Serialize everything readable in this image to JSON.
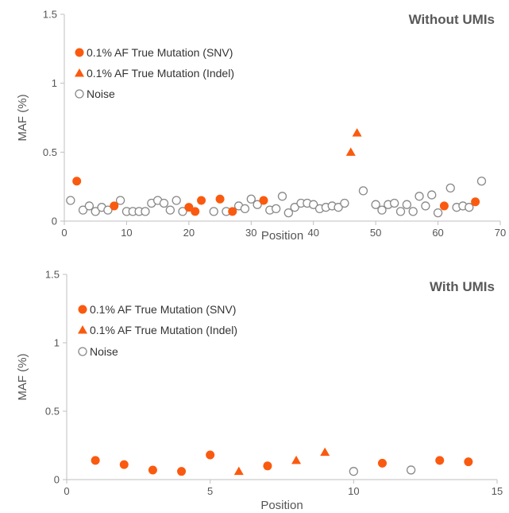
{
  "colors": {
    "mutation": "#FA5A0F",
    "noise_edge": "#888888",
    "axis": "#BFBFBF"
  },
  "chart_data": [
    {
      "type": "scatter",
      "title": "Without UMIs",
      "xlabel": "Position",
      "ylabel": "MAF (%)",
      "xlim": [
        0,
        70
      ],
      "ylim": [
        0,
        1.5
      ],
      "xticks": [
        0,
        10,
        20,
        30,
        40,
        50,
        60,
        70
      ],
      "yticks": [
        0,
        0.5,
        1,
        1.5
      ],
      "ytick_labels": [
        "0",
        "0.5",
        "1",
        "1.5"
      ],
      "legend_position": "top-left",
      "series": [
        {
          "name": "0.1% AF True Mutation (SNV)",
          "marker": "circle-filled",
          "points": [
            [
              2,
              0.29
            ],
            [
              8,
              0.11
            ],
            [
              20,
              0.1
            ],
            [
              21,
              0.07
            ],
            [
              22,
              0.15
            ],
            [
              25,
              0.16
            ],
            [
              27,
              0.07
            ],
            [
              32,
              0.15
            ],
            [
              61,
              0.11
            ],
            [
              66,
              0.14
            ]
          ]
        },
        {
          "name": "0.1% AF True Mutation (Indel)",
          "marker": "triangle-filled",
          "points": [
            [
              46,
              0.5
            ],
            [
              47,
              0.64
            ]
          ]
        },
        {
          "name": "Noise",
          "marker": "circle-open",
          "points": [
            [
              1,
              0.15
            ],
            [
              3,
              0.08
            ],
            [
              4,
              0.11
            ],
            [
              5,
              0.07
            ],
            [
              6,
              0.1
            ],
            [
              7,
              0.08
            ],
            [
              9,
              0.15
            ],
            [
              10,
              0.07
            ],
            [
              11,
              0.07
            ],
            [
              12,
              0.07
            ],
            [
              13,
              0.07
            ],
            [
              14,
              0.13
            ],
            [
              15,
              0.15
            ],
            [
              16,
              0.13
            ],
            [
              17,
              0.08
            ],
            [
              18,
              0.15
            ],
            [
              19,
              0.07
            ],
            [
              24,
              0.07
            ],
            [
              26,
              0.07
            ],
            [
              28,
              0.11
            ],
            [
              29,
              0.09
            ],
            [
              30,
              0.16
            ],
            [
              31,
              0.12
            ],
            [
              33,
              0.08
            ],
            [
              34,
              0.09
            ],
            [
              35,
              0.18
            ],
            [
              36,
              0.06
            ],
            [
              37,
              0.1
            ],
            [
              38,
              0.13
            ],
            [
              39,
              0.13
            ],
            [
              40,
              0.12
            ],
            [
              41,
              0.09
            ],
            [
              42,
              0.1
            ],
            [
              43,
              0.11
            ],
            [
              44,
              0.1
            ],
            [
              45,
              0.13
            ],
            [
              48,
              0.22
            ],
            [
              50,
              0.12
            ],
            [
              51,
              0.08
            ],
            [
              52,
              0.12
            ],
            [
              53,
              0.13
            ],
            [
              54,
              0.07
            ],
            [
              55,
              0.12
            ],
            [
              56,
              0.07
            ],
            [
              57,
              0.18
            ],
            [
              58,
              0.11
            ],
            [
              59,
              0.19
            ],
            [
              60,
              0.06
            ],
            [
              62,
              0.24
            ],
            [
              63,
              0.1
            ],
            [
              64,
              0.11
            ],
            [
              65,
              0.1
            ],
            [
              67,
              0.29
            ]
          ]
        }
      ]
    },
    {
      "type": "scatter",
      "title": "With UMIs",
      "xlabel": "Position",
      "ylabel": "MAF (%)",
      "xlim": [
        0,
        15
      ],
      "ylim": [
        0,
        1.5
      ],
      "xticks": [
        0,
        5,
        10,
        15
      ],
      "yticks": [
        0,
        0.5,
        1,
        1.5
      ],
      "ytick_labels": [
        "0",
        "0.5",
        "1",
        "1.5"
      ],
      "legend_position": "top-left",
      "series": [
        {
          "name": "0.1% AF True Mutation (SNV)",
          "marker": "circle-filled",
          "points": [
            [
              1,
              0.14
            ],
            [
              2,
              0.11
            ],
            [
              3,
              0.07
            ],
            [
              4,
              0.06
            ],
            [
              5,
              0.18
            ],
            [
              7,
              0.1
            ],
            [
              11,
              0.12
            ],
            [
              13,
              0.14
            ],
            [
              14,
              0.13
            ]
          ]
        },
        {
          "name": "0.1% AF True Mutation (Indel)",
          "marker": "triangle-filled",
          "points": [
            [
              6,
              0.06
            ],
            [
              8,
              0.14
            ],
            [
              9,
              0.2
            ]
          ]
        },
        {
          "name": "Noise",
          "marker": "circle-open",
          "points": [
            [
              10,
              0.06
            ],
            [
              12,
              0.07
            ]
          ]
        }
      ]
    }
  ]
}
